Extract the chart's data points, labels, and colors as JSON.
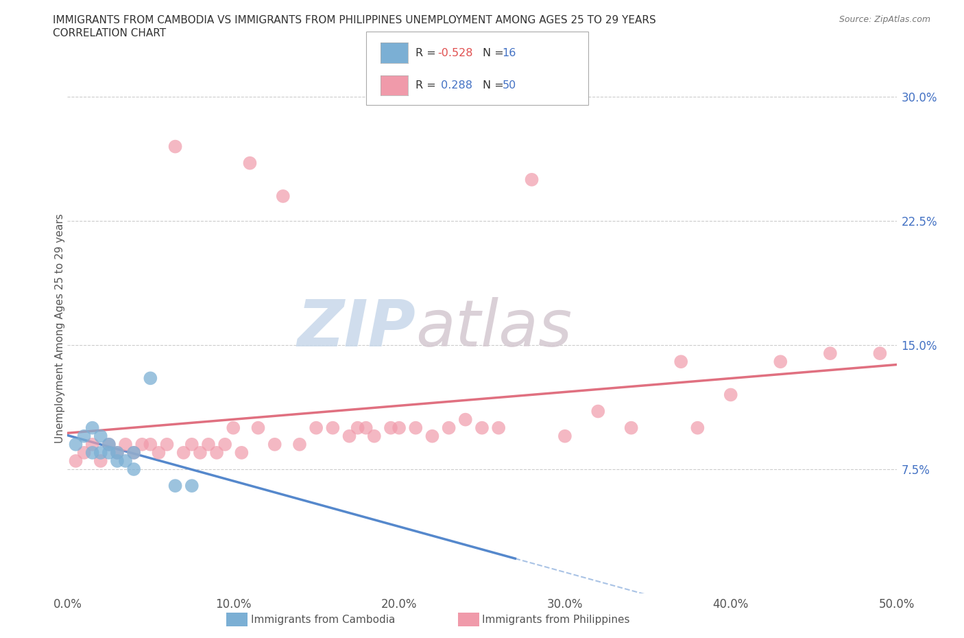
{
  "title_line1": "IMMIGRANTS FROM CAMBODIA VS IMMIGRANTS FROM PHILIPPINES UNEMPLOYMENT AMONG AGES 25 TO 29 YEARS",
  "title_line2": "CORRELATION CHART",
  "source": "Source: ZipAtlas.com",
  "ylabel": "Unemployment Among Ages 25 to 29 years",
  "xlim": [
    0.0,
    0.5
  ],
  "ylim": [
    0.0,
    0.32
  ],
  "xtick_labels": [
    "0.0%",
    "10.0%",
    "20.0%",
    "30.0%",
    "40.0%",
    "50.0%"
  ],
  "xtick_values": [
    0.0,
    0.1,
    0.2,
    0.3,
    0.4,
    0.5
  ],
  "ytick_labels": [
    "7.5%",
    "15.0%",
    "22.5%",
    "30.0%"
  ],
  "ytick_values": [
    0.075,
    0.15,
    0.225,
    0.3
  ],
  "watermark_zip": "ZIP",
  "watermark_atlas": "atlas",
  "color_cambodia": "#7bafd4",
  "color_philippines": "#f09aaa",
  "color_line_cambodia": "#5588cc",
  "color_line_philippines": "#e07080",
  "background_color": "#ffffff",
  "cambodia_x": [
    0.005,
    0.01,
    0.015,
    0.015,
    0.02,
    0.02,
    0.025,
    0.025,
    0.03,
    0.03,
    0.035,
    0.04,
    0.04,
    0.05,
    0.065,
    0.075
  ],
  "cambodia_y": [
    0.09,
    0.095,
    0.085,
    0.1,
    0.085,
    0.095,
    0.085,
    0.09,
    0.08,
    0.085,
    0.08,
    0.085,
    0.075,
    0.13,
    0.065,
    0.065
  ],
  "philippines_x": [
    0.005,
    0.01,
    0.015,
    0.02,
    0.025,
    0.03,
    0.035,
    0.04,
    0.045,
    0.05,
    0.055,
    0.06,
    0.065,
    0.07,
    0.075,
    0.08,
    0.085,
    0.09,
    0.095,
    0.1,
    0.105,
    0.11,
    0.115,
    0.125,
    0.13,
    0.14,
    0.15,
    0.16,
    0.17,
    0.175,
    0.18,
    0.185,
    0.195,
    0.2,
    0.21,
    0.22,
    0.23,
    0.24,
    0.25,
    0.26,
    0.28,
    0.3,
    0.32,
    0.34,
    0.37,
    0.38,
    0.4,
    0.43,
    0.46,
    0.49
  ],
  "philippines_y": [
    0.08,
    0.085,
    0.09,
    0.08,
    0.09,
    0.085,
    0.09,
    0.085,
    0.09,
    0.09,
    0.085,
    0.09,
    0.27,
    0.085,
    0.09,
    0.085,
    0.09,
    0.085,
    0.09,
    0.1,
    0.085,
    0.26,
    0.1,
    0.09,
    0.24,
    0.09,
    0.1,
    0.1,
    0.095,
    0.1,
    0.1,
    0.095,
    0.1,
    0.1,
    0.1,
    0.095,
    0.1,
    0.105,
    0.1,
    0.1,
    0.25,
    0.095,
    0.11,
    0.1,
    0.14,
    0.1,
    0.12,
    0.14,
    0.145,
    0.145
  ]
}
